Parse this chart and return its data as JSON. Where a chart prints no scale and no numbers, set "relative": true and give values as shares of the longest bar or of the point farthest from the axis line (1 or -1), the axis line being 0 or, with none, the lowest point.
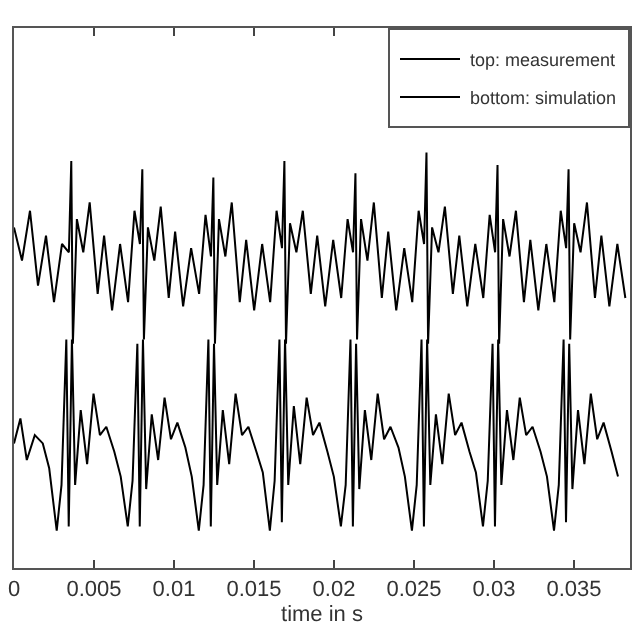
{
  "chart_data": {
    "type": "line",
    "xlabel": "time in s",
    "relative": true,
    "xlim": [
      0,
      0.0385
    ],
    "xticks": [
      0,
      0.005,
      0.01,
      0.015,
      0.02,
      0.025,
      0.03,
      0.035
    ],
    "tick_labels": "x",
    "legend": "top right",
    "line_style": "solid",
    "series": [
      {
        "name": "top: measurement",
        "color": "#000000",
        "x": [
          0,
          0.0005,
          0.001,
          0.0015,
          0.002,
          0.0025,
          0.003,
          0.00343,
          0.00358,
          0.00368,
          0.00393,
          0.00433,
          0.00473,
          0.00523,
          0.00563,
          0.00613,
          0.00663,
          0.00713,
          0.00753,
          0.00787,
          0.00802,
          0.00812,
          0.00837,
          0.00877,
          0.00917,
          0.00967,
          0.01007,
          0.01057,
          0.01107,
          0.01157,
          0.01197,
          0.01231,
          0.01246,
          0.01256,
          0.01281,
          0.01321,
          0.01361,
          0.01411,
          0.01451,
          0.01501,
          0.01551,
          0.01601,
          0.01641,
          0.01675,
          0.0169,
          0.017,
          0.01725,
          0.01765,
          0.01805,
          0.01855,
          0.01895,
          0.01945,
          0.01995,
          0.02045,
          0.02085,
          0.02119,
          0.02134,
          0.02144,
          0.02169,
          0.02209,
          0.02249,
          0.02299,
          0.02339,
          0.02389,
          0.02439,
          0.02489,
          0.02529,
          0.02563,
          0.02578,
          0.02588,
          0.02613,
          0.02653,
          0.02693,
          0.02743,
          0.02783,
          0.02833,
          0.02883,
          0.02933,
          0.02973,
          0.03007,
          0.03022,
          0.03032,
          0.03057,
          0.03097,
          0.03137,
          0.03187,
          0.03227,
          0.03277,
          0.03327,
          0.03377,
          0.03417,
          0.03451,
          0.03466,
          0.03476,
          0.03501,
          0.03541,
          0.03581,
          0.03631,
          0.03671,
          0.03721,
          0.03771,
          0.03821
        ],
        "values": [
          0.82,
          0.74,
          0.86,
          0.68,
          0.8,
          0.64,
          0.78,
          0.76,
          0.98,
          0.54,
          0.84,
          0.76,
          0.88,
          0.66,
          0.8,
          0.62,
          0.78,
          0.64,
          0.86,
          0.78,
          0.96,
          0.55,
          0.82,
          0.74,
          0.87,
          0.65,
          0.81,
          0.63,
          0.77,
          0.66,
          0.85,
          0.75,
          0.94,
          0.54,
          0.84,
          0.75,
          0.88,
          0.64,
          0.79,
          0.62,
          0.78,
          0.64,
          0.86,
          0.77,
          0.98,
          0.54,
          0.83,
          0.76,
          0.86,
          0.66,
          0.8,
          0.63,
          0.79,
          0.65,
          0.84,
          0.76,
          0.95,
          0.55,
          0.84,
          0.74,
          0.88,
          0.65,
          0.81,
          0.62,
          0.77,
          0.64,
          0.86,
          0.78,
          1.0,
          0.54,
          0.82,
          0.76,
          0.87,
          0.66,
          0.8,
          0.63,
          0.78,
          0.65,
          0.85,
          0.76,
          0.97,
          0.54,
          0.84,
          0.75,
          0.86,
          0.64,
          0.79,
          0.62,
          0.78,
          0.64,
          0.86,
          0.77,
          0.96,
          0.55,
          0.83,
          0.76,
          0.88,
          0.65,
          0.8,
          0.63,
          0.78,
          0.65
        ]
      },
      {
        "name": "bottom: simulation",
        "color": "#000000",
        "x": [
          0,
          0.0004,
          0.0008,
          0.0013,
          0.0018,
          0.0022,
          0.00267,
          0.00297,
          0.00327,
          0.00342,
          0.00362,
          0.00382,
          0.00417,
          0.00457,
          0.00497,
          0.00537,
          0.00577,
          0.00627,
          0.00667,
          0.00711,
          0.00741,
          0.00771,
          0.00786,
          0.00806,
          0.00826,
          0.00861,
          0.00901,
          0.00941,
          0.00981,
          0.01021,
          0.01071,
          0.01111,
          0.01155,
          0.01185,
          0.01215,
          0.0123,
          0.0125,
          0.0127,
          0.01305,
          0.01345,
          0.01385,
          0.01425,
          0.01465,
          0.01515,
          0.01555,
          0.01599,
          0.01629,
          0.01659,
          0.01674,
          0.01694,
          0.01714,
          0.01749,
          0.01789,
          0.01829,
          0.01869,
          0.01909,
          0.01959,
          0.01999,
          0.02043,
          0.02073,
          0.02103,
          0.02118,
          0.02138,
          0.02158,
          0.02193,
          0.02233,
          0.02273,
          0.02313,
          0.02353,
          0.02403,
          0.02443,
          0.02487,
          0.02517,
          0.02547,
          0.02562,
          0.02582,
          0.02602,
          0.02637,
          0.02677,
          0.02717,
          0.02757,
          0.02797,
          0.02847,
          0.02887,
          0.02931,
          0.02961,
          0.02991,
          0.03006,
          0.03026,
          0.03046,
          0.03081,
          0.03121,
          0.03161,
          0.03201,
          0.03241,
          0.03291,
          0.03331,
          0.03375,
          0.03405,
          0.03435,
          0.0345,
          0.0347,
          0.0349,
          0.03525,
          0.03565,
          0.03605,
          0.03645,
          0.03685,
          0.03735,
          0.03775
        ],
        "values": [
          0.3,
          0.36,
          0.26,
          0.32,
          0.3,
          0.24,
          0.09,
          0.2,
          0.55,
          0.1,
          0.55,
          0.2,
          0.38,
          0.25,
          0.42,
          0.32,
          0.34,
          0.28,
          0.22,
          0.1,
          0.21,
          0.54,
          0.1,
          0.55,
          0.19,
          0.37,
          0.26,
          0.41,
          0.31,
          0.35,
          0.29,
          0.22,
          0.09,
          0.2,
          0.55,
          0.1,
          0.54,
          0.2,
          0.38,
          0.25,
          0.42,
          0.32,
          0.34,
          0.28,
          0.23,
          0.09,
          0.21,
          0.55,
          0.11,
          0.55,
          0.2,
          0.39,
          0.25,
          0.41,
          0.32,
          0.35,
          0.28,
          0.22,
          0.1,
          0.2,
          0.55,
          0.1,
          0.54,
          0.19,
          0.38,
          0.26,
          0.42,
          0.31,
          0.34,
          0.29,
          0.22,
          0.09,
          0.2,
          0.55,
          0.1,
          0.55,
          0.2,
          0.37,
          0.25,
          0.42,
          0.32,
          0.35,
          0.28,
          0.23,
          0.1,
          0.21,
          0.54,
          0.1,
          0.55,
          0.2,
          0.38,
          0.26,
          0.41,
          0.32,
          0.34,
          0.28,
          0.22,
          0.09,
          0.2,
          0.55,
          0.11,
          0.54,
          0.19,
          0.38,
          0.25,
          0.42,
          0.31,
          0.35,
          0.28,
          0.22
        ]
      }
    ]
  }
}
